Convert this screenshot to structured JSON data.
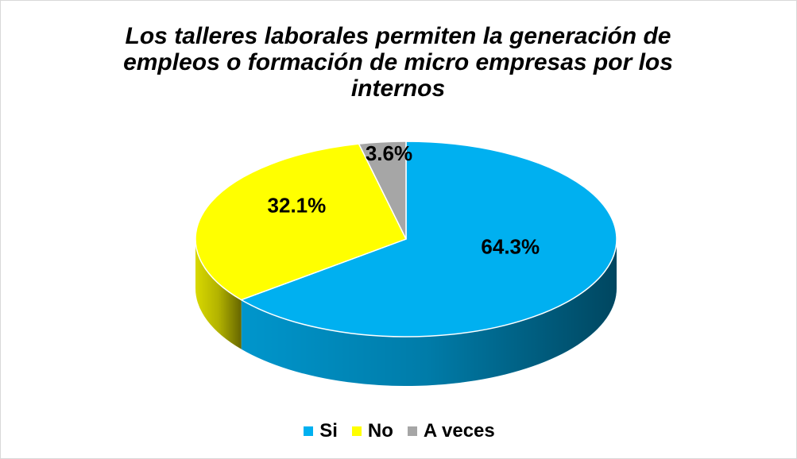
{
  "chart_data": {
    "type": "pie",
    "title": "Los talleres laborales permiten la generación de empleos o formación de micro empresas por los internos",
    "categories": [
      "Si",
      "No",
      "A veces"
    ],
    "values": [
      64.3,
      32.1,
      3.6
    ],
    "value_labels": [
      "64.3%",
      "32.1%",
      "3.6%"
    ],
    "colors": [
      "#00b0f0",
      "#ffff00",
      "#a6a6a6"
    ],
    "legend": "bottom"
  }
}
